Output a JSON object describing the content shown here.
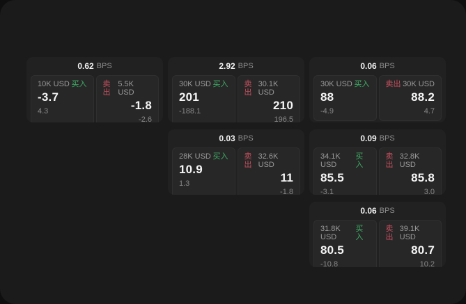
{
  "labels": {
    "bps": "BPS",
    "buy": "买入",
    "sell": "卖出"
  },
  "colors": {
    "window_bg": "#1b1b1b",
    "card_bg": "#212121",
    "panel_bg": "#272727",
    "buy_green": "#3fae66",
    "sell_red": "#c44f5e",
    "value_white": "#f5f5f5",
    "label_gray": "#9a9a9a"
  },
  "cards": [
    {
      "bps": "0.62",
      "buy": {
        "amount": "10K USD",
        "price": "-3.7",
        "change": "4.3"
      },
      "sell": {
        "amount": "5.5K USD",
        "price": "-1.8",
        "change": "-2.6"
      }
    },
    {
      "bps": "2.92",
      "buy": {
        "amount": "30K USD",
        "price": "201",
        "change": "-188.1"
      },
      "sell": {
        "amount": "30.1K USD",
        "price": "210",
        "change": "196.5"
      }
    },
    {
      "bps": "0.06",
      "buy": {
        "amount": "30K USD",
        "price": "88",
        "change": "-4.9"
      },
      "sell": {
        "amount": "30K USD",
        "price": "88.2",
        "change": "4.7"
      }
    },
    {
      "bps": "0.03",
      "buy": {
        "amount": "28K USD",
        "price": "10.9",
        "change": "1.3"
      },
      "sell": {
        "amount": "32.6K USD",
        "price": "11",
        "change": "-1.8"
      }
    },
    {
      "bps": "0.09",
      "buy": {
        "amount": "34.1K USD",
        "price": "85.5",
        "change": "-3.1"
      },
      "sell": {
        "amount": "32.8K USD",
        "price": "85.8",
        "change": "3.0"
      }
    },
    {
      "bps": "0.06",
      "buy": {
        "amount": "31.8K USD",
        "price": "80.5",
        "change": "-10.8"
      },
      "sell": {
        "amount": "39.1K USD",
        "price": "80.7",
        "change": "10.2"
      }
    }
  ]
}
